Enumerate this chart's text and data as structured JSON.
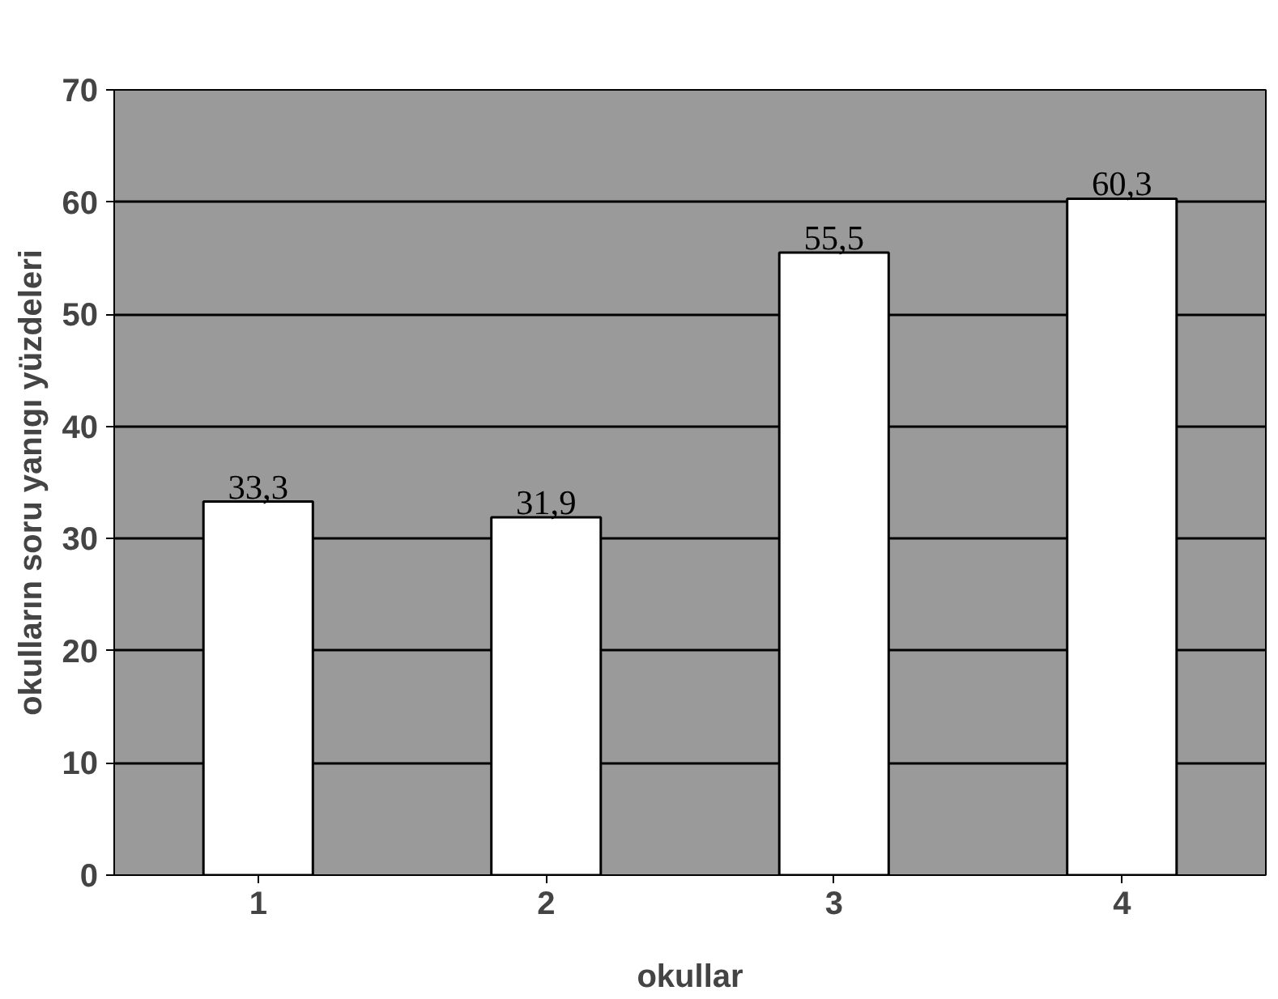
{
  "chart_data": {
    "type": "bar",
    "xlabel": "okullar",
    "ylabel": "okulların soru yanıgı yüzdeleri",
    "categories": [
      "1",
      "2",
      "3",
      "4"
    ],
    "values": [
      33.3,
      31.9,
      55.5,
      60.3
    ],
    "value_labels": [
      "33,3",
      "31,9",
      "55,5",
      "60,3"
    ],
    "color": "#ffffff",
    "ylim": [
      0,
      70
    ],
    "yticks": [
      0,
      10,
      20,
      30,
      40,
      50,
      60,
      70
    ],
    "grid": "y"
  }
}
